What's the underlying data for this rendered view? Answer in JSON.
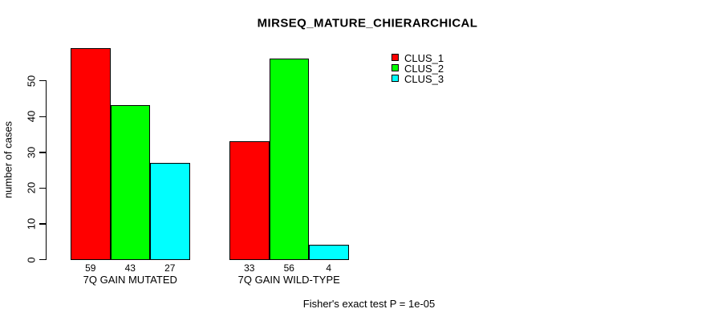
{
  "title": "MIRSEQ_MATURE_CHIERARCHICAL",
  "footer_note": "Fisher's exact test P = 1e-05",
  "chart_data": {
    "type": "bar",
    "title": "MIRSEQ_MATURE_CHIERARCHICAL",
    "xlabel": "",
    "ylabel": "number of cases",
    "ylim": [
      0,
      59
    ],
    "yticks": [
      0,
      10,
      20,
      30,
      40,
      50
    ],
    "grid": false,
    "legend_position": "top-right-inside",
    "categories": [
      "7Q GAIN MUTATED",
      "7Q GAIN WILD-TYPE"
    ],
    "series": [
      {
        "name": "CLUS_1",
        "color": "#ff0000",
        "values": [
          59,
          33
        ]
      },
      {
        "name": "CLUS_2",
        "color": "#00ff00",
        "values": [
          43,
          56
        ]
      },
      {
        "name": "CLUS_3",
        "color": "#00ffff",
        "values": [
          27,
          4
        ]
      }
    ],
    "bar_value_labels": [
      [
        59,
        43,
        27
      ],
      [
        33,
        56,
        4
      ]
    ],
    "annotation": "Fisher's exact test P = 1e-05"
  }
}
